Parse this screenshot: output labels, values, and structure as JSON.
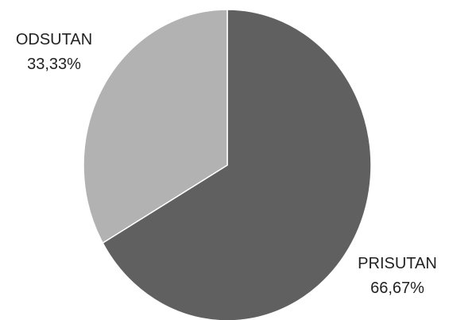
{
  "chart_data": {
    "type": "pie",
    "title": "",
    "slices": [
      {
        "name": "PRISUTAN",
        "value": 66.67,
        "value_label": "66,67%",
        "color": "#606060"
      },
      {
        "name": "ODSUTAN",
        "value": 33.33,
        "value_label": "33,33%",
        "color": "#b2b2b2"
      }
    ],
    "start_angle": "12 o'clock",
    "direction": "clockwise",
    "legend": "none",
    "data_labels": "outside"
  }
}
